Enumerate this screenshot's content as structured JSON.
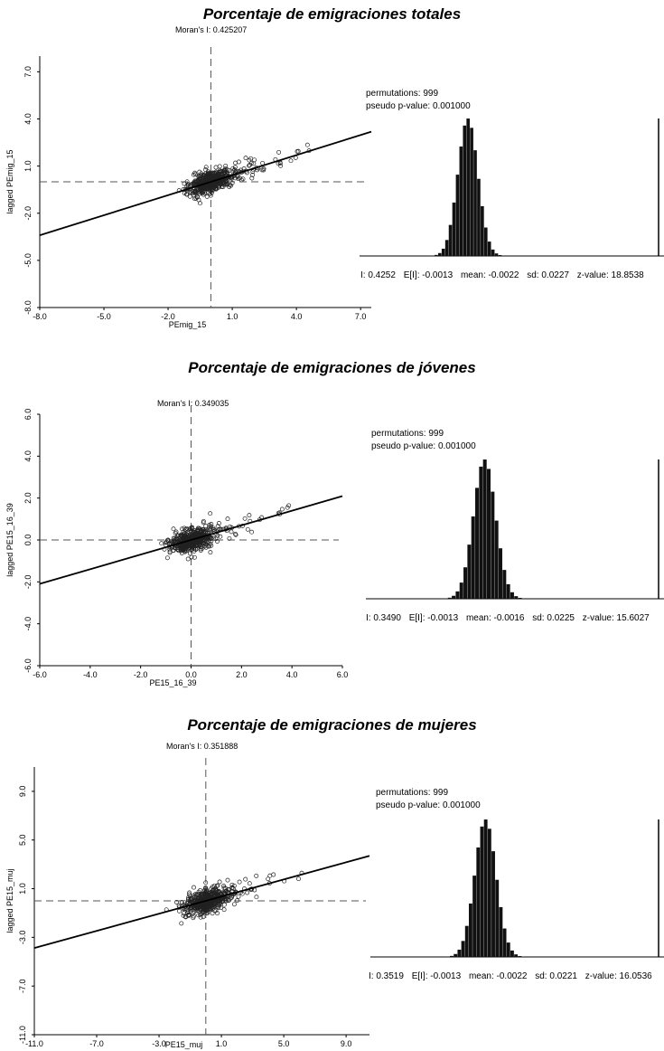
{
  "chart_data": [
    {
      "type": "scatter",
      "title": "Porcentaje de emigraciones totales",
      "subtitle": "Moran's I: 0.425207",
      "xlabel": "PEmig_15",
      "ylabel": "lagged PEmig_15",
      "xlim": [
        -8.0,
        7.5
      ],
      "ylim": [
        -8.0,
        8.0
      ],
      "xticks": [
        "-8.0",
        "-5.0",
        "-2.0",
        "1.0",
        "4.0",
        "7.0"
      ],
      "yticks": [
        "-8.0",
        "-5.0",
        "-2.0",
        "1.0",
        "4.0",
        "7.0"
      ],
      "slope": 0.425207,
      "mean_ref_lines": true,
      "permutations_label": "permutations: 999",
      "p_value_label": "pseudo p-value: 0.001000",
      "stats": [
        "I: 0.4252",
        "E[I]: -0.0013",
        "mean: -0.0022",
        "sd: 0.0227",
        "z-value: 18.8538"
      ],
      "histogram": {
        "mean": -0.0022,
        "sd": 0.0227,
        "observed": 0.4252
      }
    },
    {
      "type": "scatter",
      "title": "Porcentaje de emigraciones de jóvenes",
      "subtitle": "Moran's I: 0.349035",
      "xlabel": "PE15_16_39",
      "ylabel": "lagged PE15_16_39",
      "xlim": [
        -6.0,
        6.0
      ],
      "ylim": [
        -6.0,
        6.0
      ],
      "xticks": [
        "-6.0",
        "-4.0",
        "-2.0",
        "0.0",
        "2.0",
        "4.0",
        "6.0"
      ],
      "yticks": [
        "-6.0",
        "-4.0",
        "-2.0",
        "0.0",
        "2.0",
        "4.0",
        "6.0"
      ],
      "slope": 0.349035,
      "mean_ref_lines": true,
      "permutations_label": "permutations: 999",
      "p_value_label": "pseudo p-value: 0.001000",
      "stats": [
        "I: 0.3490",
        "E[I]: -0.0013",
        "mean: -0.0016",
        "sd: 0.0225",
        "z-value: 15.6027"
      ],
      "histogram": {
        "mean": -0.0016,
        "sd": 0.0225,
        "observed": 0.349
      }
    },
    {
      "type": "scatter",
      "title": "Porcentaje de emigraciones de mujeres",
      "subtitle": "Moran's I: 0.351888",
      "xlabel": "PE15_muj",
      "ylabel": "lagged PE15_muj",
      "xlim": [
        -11.0,
        10.5
      ],
      "ylim": [
        -11.0,
        11.0
      ],
      "xticks": [
        "-11.0",
        "-7.0",
        "-3.0",
        "1.0",
        "5.0",
        "9.0"
      ],
      "yticks": [
        "-11.0",
        "-7.0",
        "-3.0",
        "1.0",
        "5.0",
        "9.0"
      ],
      "slope": 0.351888,
      "mean_ref_lines": true,
      "permutations_label": "permutations: 999",
      "p_value_label": "pseudo p-value: 0.001000",
      "stats": [
        "I: 0.3519",
        "E[I]: -0.0013",
        "mean: -0.0022",
        "sd: 0.0221",
        "z-value: 16.0536"
      ],
      "histogram": {
        "mean": -0.0022,
        "sd": 0.0221,
        "observed": 0.3519
      }
    }
  ]
}
